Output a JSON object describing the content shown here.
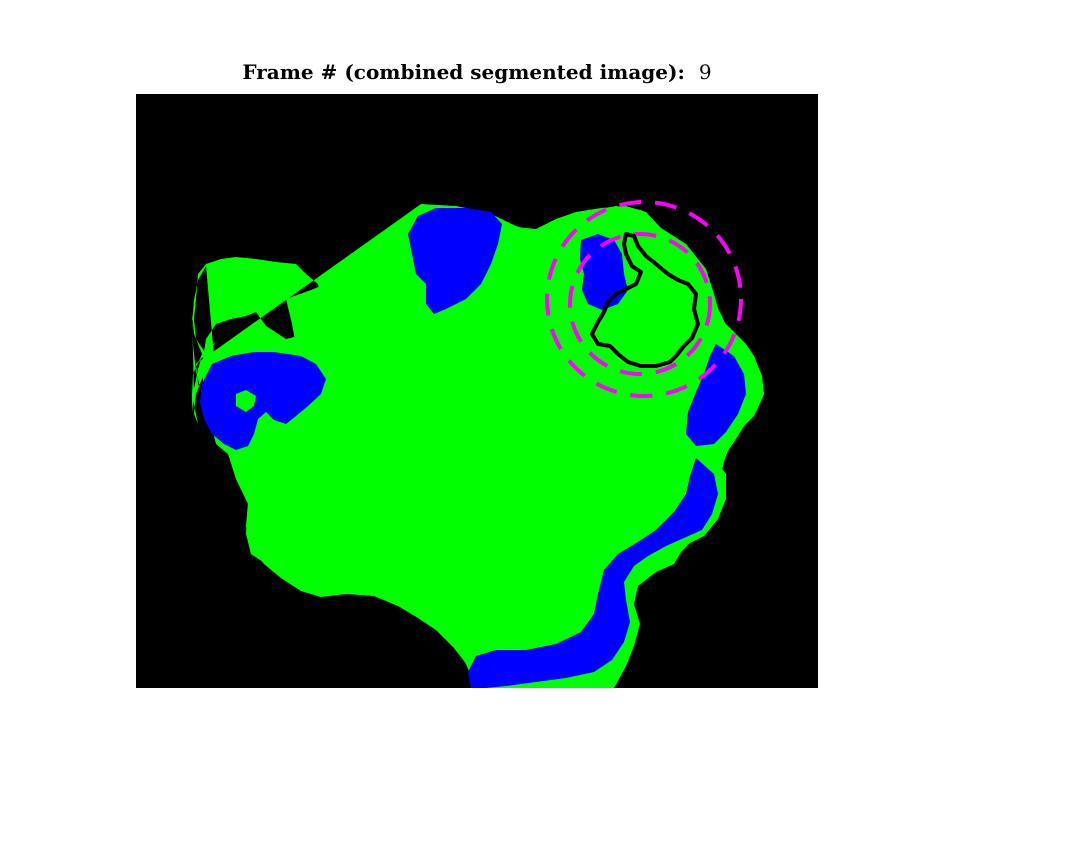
{
  "figure": {
    "title_label": "Frame # (combined segmented image):",
    "frame_number": "9"
  },
  "legend_colors": {
    "background": "#000000",
    "segment_green": "#00ff00",
    "segment_blue": "#0000ff",
    "marker_circle": "#ff00ff",
    "contour": "#000000"
  }
}
